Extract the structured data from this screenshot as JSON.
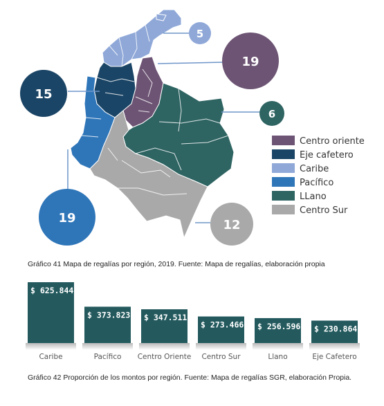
{
  "colors": {
    "centro_oriente": "#6d5474",
    "eje_cafetero": "#1b4566",
    "caribe": "#8fa8d8",
    "pacifico": "#2f76b9",
    "llano": "#2e6462",
    "centro_sur": "#a9a9a9",
    "bar_fill": "#245a5e"
  },
  "map": {
    "bubbles": [
      {
        "region": "caribe",
        "value": "5"
      },
      {
        "region": "centro_oriente",
        "value": "19"
      },
      {
        "region": "eje_cafetero",
        "value": "15"
      },
      {
        "region": "llano",
        "value": "6"
      },
      {
        "region": "pacifico",
        "value": "19"
      },
      {
        "region": "centro_sur",
        "value": "12"
      }
    ],
    "legend": [
      {
        "region": "centro_oriente",
        "label": "Centro oriente"
      },
      {
        "region": "eje_cafetero",
        "label": "Eje cafetero"
      },
      {
        "region": "caribe",
        "label": "Caribe"
      },
      {
        "region": "pacifico",
        "label": "Pacífico"
      },
      {
        "region": "llano",
        "label": "LLano"
      },
      {
        "region": "centro_sur",
        "label": "Centro Sur"
      }
    ],
    "caption": "Gráfico 41 Mapa de regalías por región, 2019. Fuente: Mapa de regalías, elaboración propia"
  },
  "chart_data": {
    "type": "bar",
    "categories": [
      "Caribe",
      "Pacífico",
      "Centro Oriente",
      "Centro Sur",
      "Llano",
      "Eje Cafetero"
    ],
    "values": [
      625.844,
      373.823,
      347.511,
      273.466,
      256.596,
      230.864
    ],
    "labels": [
      "$ 625.844",
      "$ 373.823",
      "$ 347.511",
      "$ 273.466",
      "$ 256.596",
      "$ 230.864"
    ],
    "title": "",
    "xlabel": "",
    "ylabel": "",
    "grid": false,
    "legend": "none"
  },
  "bar_caption": "Gráfico 42 Proporción de los montos por región. Fuente: Mapa de regalías SGR, elaboración Propia."
}
